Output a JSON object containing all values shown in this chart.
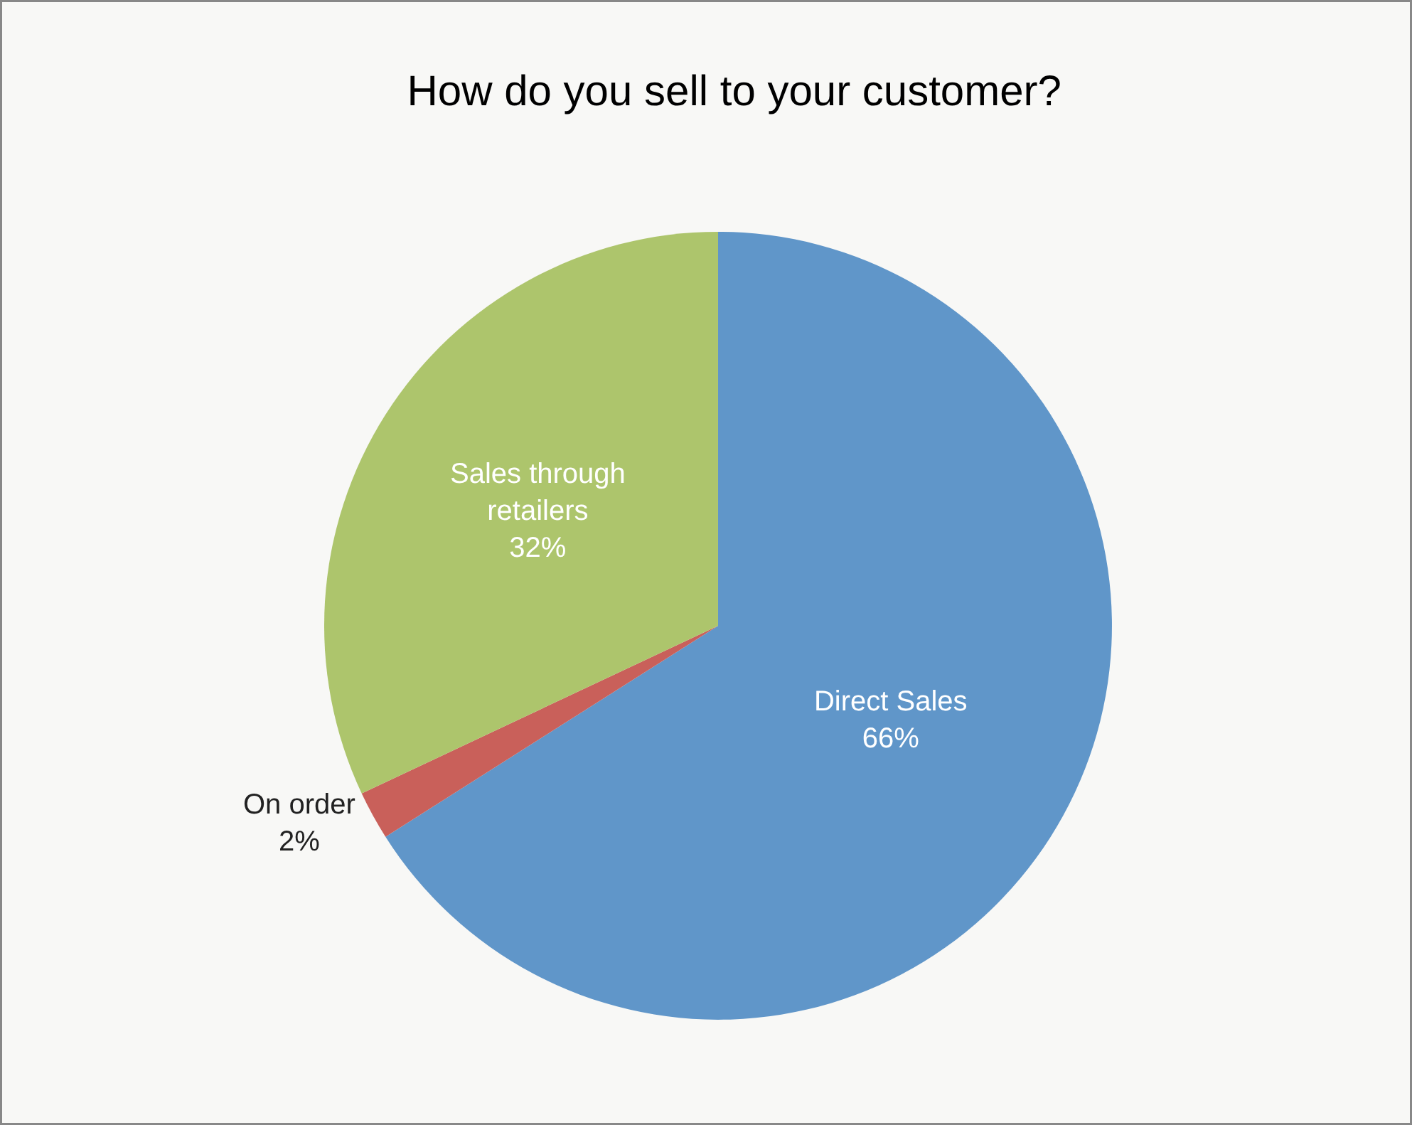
{
  "chart_data": {
    "type": "pie",
    "title": "How do you sell to your customer?",
    "categories": [
      "Direct Sales",
      "On order",
      "Sales through retailers"
    ],
    "values": [
      66,
      2,
      32
    ],
    "value_labels": [
      "66%",
      "2%",
      "32%"
    ],
    "colors": [
      "#6096c9",
      "#c9605a",
      "#adc56c"
    ],
    "legend": false
  }
}
